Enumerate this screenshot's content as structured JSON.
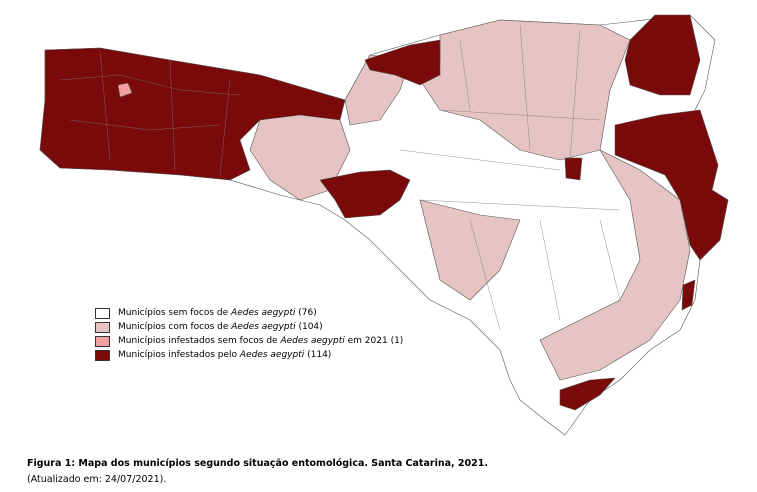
{
  "legend": {
    "items": [
      {
        "before": "Municípios sem focos de ",
        "italic": "Aedes aegypti",
        "after": " (76)"
      },
      {
        "before": "Municípios com focos de ",
        "italic": "Aedes aegypti",
        "after": " (104)"
      },
      {
        "before": "Municípios infestados sem focos de ",
        "italic": "Aedes aegypti",
        "after": " em 2021 (1)"
      },
      {
        "before": "Municípios infestados pelo ",
        "italic": "Aedes aegypti",
        "after": " (114)"
      }
    ]
  },
  "caption": {
    "title": "Figura 1: Mapa dos municípios segundo situação entomológica. Santa Catarina, 2021.",
    "note": "(Atualizado em: 24/07/2021)."
  }
}
